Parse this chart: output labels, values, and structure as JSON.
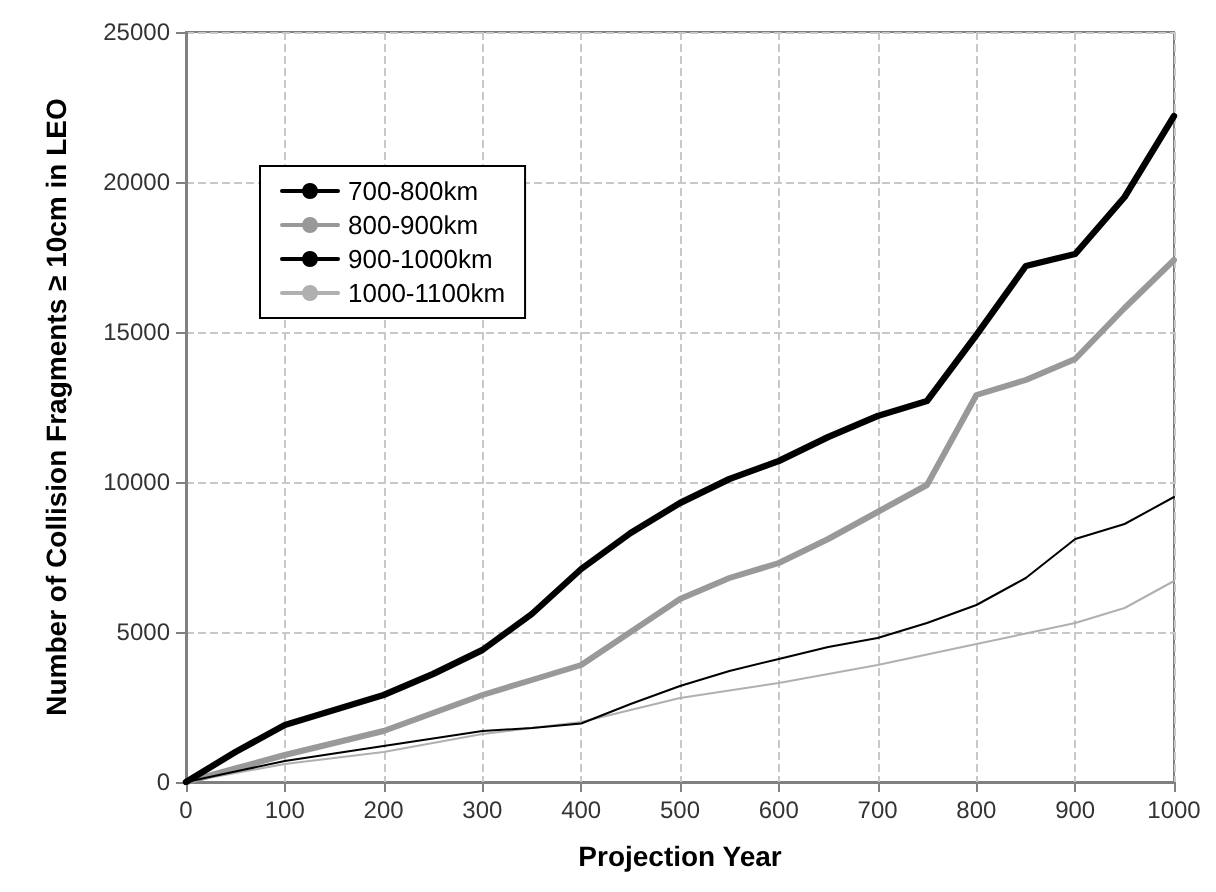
{
  "chart_data": {
    "type": "line",
    "xlabel": "Projection Year",
    "ylabel": "Number of Collision Fragments ≥ 10cm in LEO",
    "x": [
      0,
      50,
      100,
      150,
      200,
      250,
      300,
      350,
      400,
      450,
      500,
      550,
      600,
      650,
      700,
      750,
      800,
      850,
      900,
      950,
      1000
    ],
    "series": [
      {
        "name": "700-800km",
        "color": "#000000",
        "values": [
          0,
          350,
          700,
          950,
          1200,
          1450,
          1700,
          1800,
          1950,
          2600,
          3200,
          3700,
          4100,
          4500,
          4800,
          5300,
          5900,
          6800,
          8100,
          8600,
          9500
        ]
      },
      {
        "name": "800-900km",
        "color": "#999999",
        "values": [
          0,
          450,
          900,
          1300,
          1700,
          2300,
          2900,
          3400,
          3900,
          5000,
          6100,
          6800,
          7300,
          8100,
          9000,
          9900,
          12900,
          13400,
          14100,
          15800,
          17400
        ]
      },
      {
        "name": "900-1000km",
        "color": "#000000",
        "values": [
          0,
          1000,
          1900,
          2400,
          2900,
          3600,
          4400,
          5600,
          7100,
          8300,
          9300,
          10100,
          10700,
          11500,
          12200,
          12700,
          14900,
          17200,
          17600,
          19500,
          22200
        ]
      },
      {
        "name": "1000-1100km",
        "color": "#b0b0b0",
        "values": [
          0,
          300,
          600,
          800,
          1000,
          1300,
          1600,
          1800,
          2000,
          2400,
          2800,
          3050,
          3300,
          3600,
          3900,
          4250,
          4600,
          4950,
          5300,
          5800,
          6700
        ]
      }
    ],
    "xlim": [
      0,
      1000
    ],
    "xticks": [
      0,
      100,
      200,
      300,
      400,
      500,
      600,
      700,
      800,
      900,
      1000
    ],
    "ylim": [
      0,
      25000
    ],
    "yticks": [
      0,
      5000,
      10000,
      15000,
      20000,
      25000
    ],
    "grid": true,
    "legend": "top left",
    "marker": "none",
    "line_style": "solid"
  }
}
